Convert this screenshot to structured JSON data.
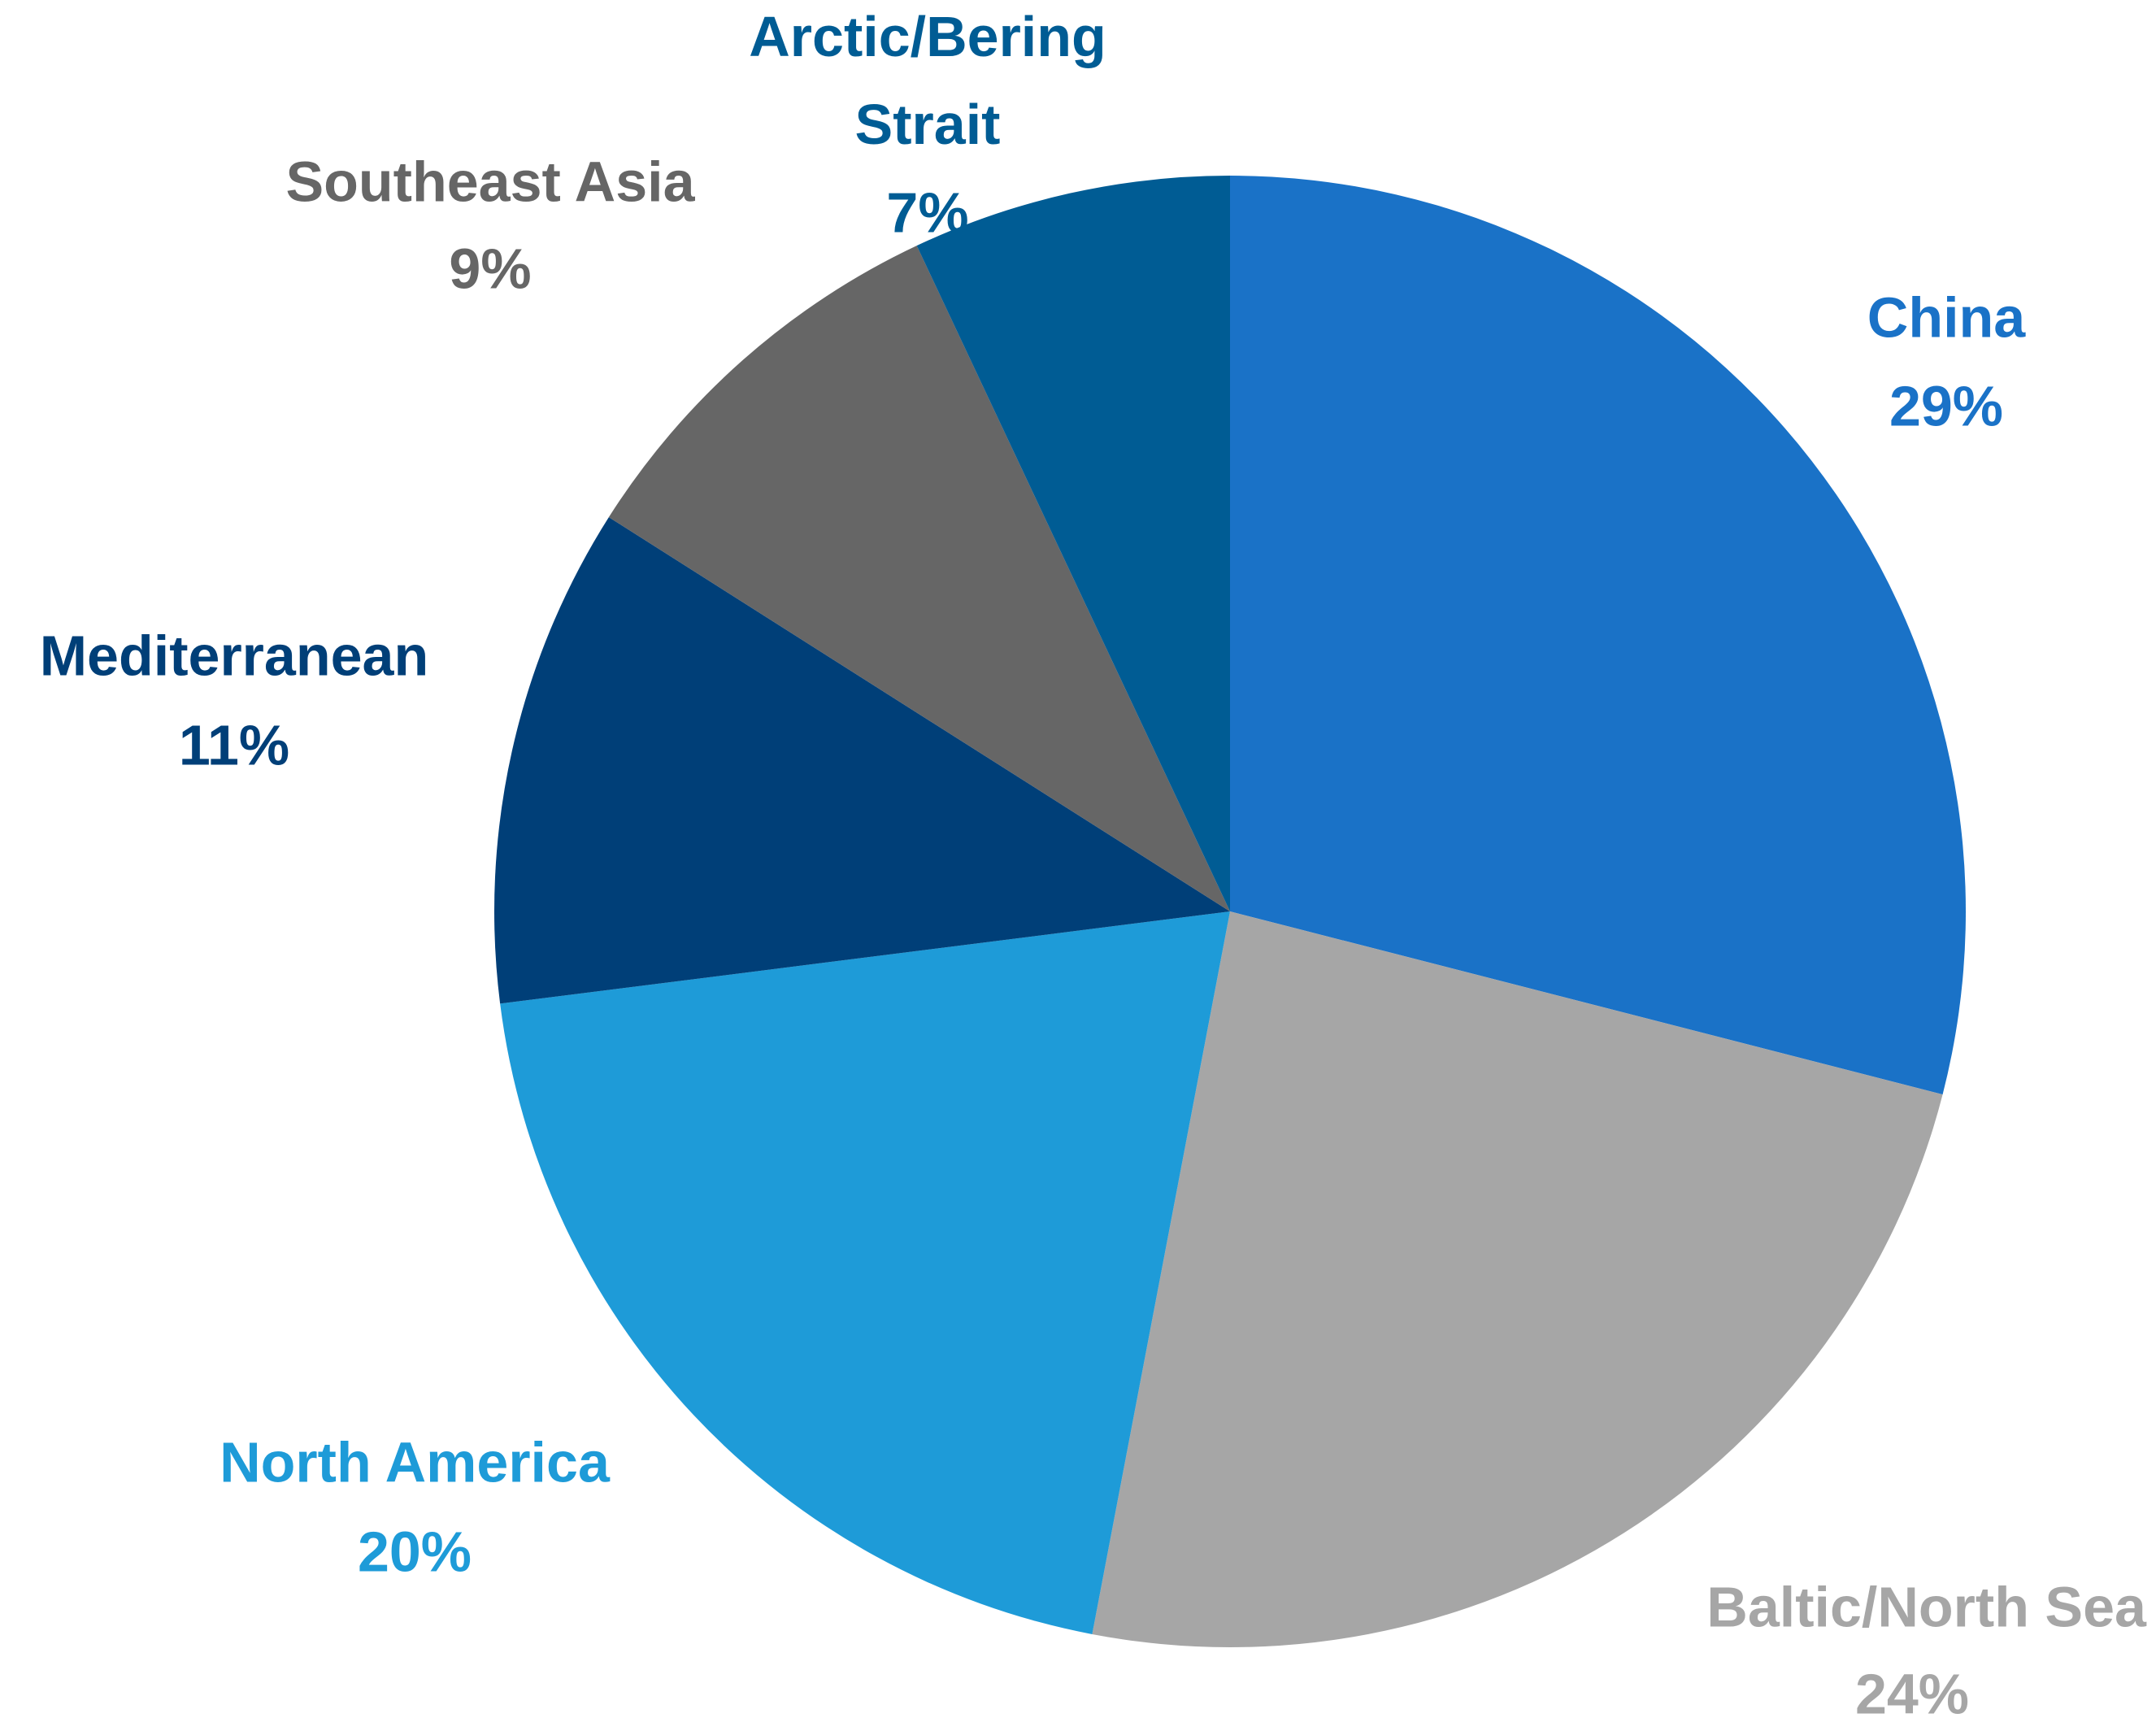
{
  "chart_data": {
    "type": "pie",
    "categories": [
      "China",
      "Baltic/North Sea",
      "North America",
      "Mediterranean",
      "Southeast Asia",
      "Arctic/Bering Strait"
    ],
    "values": [
      29,
      24,
      20,
      11,
      9,
      7
    ],
    "value_labels": [
      "29%",
      "24%",
      "20%",
      "11%",
      "9%",
      "7%"
    ],
    "colors": [
      "#1a72c7",
      "#a6a6a6",
      "#1e9bd8",
      "#003f78",
      "#666666",
      "#005c94"
    ]
  }
}
